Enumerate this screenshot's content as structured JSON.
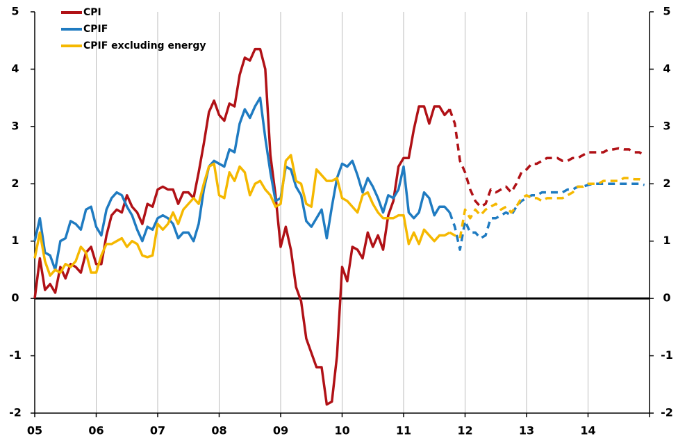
{
  "chart_data": {
    "type": "line",
    "categories": [
      "05",
      null,
      null,
      null,
      null,
      null,
      null,
      null,
      null,
      null,
      null,
      null,
      "06",
      null,
      null,
      null,
      null,
      null,
      null,
      null,
      null,
      null,
      null,
      null,
      "07",
      null,
      null,
      null,
      null,
      null,
      null,
      null,
      null,
      null,
      null,
      null,
      "08",
      null,
      null,
      null,
      null,
      null,
      null,
      null,
      null,
      null,
      null,
      null,
      "09",
      null,
      null,
      null,
      null,
      null,
      null,
      null,
      null,
      null,
      null,
      null,
      "10",
      null,
      null,
      null,
      null,
      null,
      null,
      null,
      null,
      null,
      null,
      null,
      "11",
      null,
      null,
      null,
      null,
      null,
      null,
      null,
      null,
      null,
      null,
      null,
      "12",
      null,
      null,
      null,
      null,
      null,
      null,
      null,
      null,
      null,
      null,
      null,
      "13",
      null,
      null,
      null,
      null,
      null,
      null,
      null,
      null,
      null,
      null,
      null,
      "14",
      null,
      null,
      null,
      null,
      null,
      null,
      null,
      null,
      null,
      null,
      null
    ],
    "ylim": [
      -2,
      5
    ],
    "yticks": [
      -2,
      -1,
      0,
      1,
      2,
      3,
      4,
      5
    ],
    "grid": "x",
    "legend": "upper-left",
    "series": [
      {
        "name": "CPI",
        "color": "#b01116",
        "values": [
          0,
          0.7,
          0.15,
          0.25,
          0.1,
          0.55,
          0.35,
          0.6,
          0.55,
          0.45,
          0.8,
          0.9,
          0.6,
          0.6,
          1.1,
          1.45,
          1.55,
          1.5,
          1.8,
          1.6,
          1.5,
          1.3,
          1.65,
          1.6,
          1.9,
          1.95,
          1.9,
          1.9,
          1.65,
          1.85,
          1.85,
          1.75,
          2.2,
          2.7,
          3.25,
          3.45,
          3.2,
          3.1,
          3.4,
          3.35,
          3.9,
          4.2,
          4.15,
          4.35,
          4.35,
          4.0,
          2.5,
          1.8,
          0.9,
          1.25,
          0.85,
          0.2,
          -0.05,
          -0.7,
          -0.95,
          -1.2,
          -1.2,
          -1.85,
          -1.8,
          -1.0,
          0.55,
          0.3,
          0.9,
          0.85,
          0.7,
          1.15,
          0.9,
          1.1,
          0.85,
          1.45,
          1.7,
          2.3,
          2.45,
          2.45,
          2.95,
          3.35,
          3.35,
          3.05,
          3.35,
          3.35,
          3.2,
          3.3,
          null,
          null,
          null,
          null,
          null,
          null,
          null,
          null,
          null,
          null,
          null,
          null,
          null,
          null,
          null,
          null,
          null,
          null,
          null,
          null,
          null,
          null,
          null,
          null,
          null,
          null,
          null,
          null,
          null,
          null,
          null,
          null,
          null,
          null,
          null,
          null,
          null,
          null
        ],
        "forecast": [
          null,
          null,
          null,
          null,
          null,
          null,
          null,
          null,
          null,
          null,
          null,
          null,
          null,
          null,
          null,
          null,
          null,
          null,
          null,
          null,
          null,
          null,
          null,
          null,
          null,
          null,
          null,
          null,
          null,
          null,
          null,
          null,
          null,
          null,
          null,
          null,
          null,
          null,
          null,
          null,
          null,
          null,
          null,
          null,
          null,
          null,
          null,
          null,
          null,
          null,
          null,
          null,
          null,
          null,
          null,
          null,
          null,
          null,
          null,
          null,
          null,
          null,
          null,
          null,
          null,
          null,
          null,
          null,
          null,
          null,
          null,
          null,
          null,
          null,
          null,
          null,
          null,
          null,
          null,
          null,
          null,
          null,
          3.05,
          2.4,
          2.2,
          1.9,
          1.7,
          1.6,
          1.65,
          1.9,
          1.85,
          1.9,
          1.95,
          1.85,
          2.0,
          2.2,
          2.25,
          2.35,
          2.35,
          2.4,
          2.45,
          2.45,
          2.45,
          2.4,
          2.4,
          2.45,
          2.45,
          2.5,
          2.55,
          2.55,
          2.55,
          2.55,
          2.6,
          2.6,
          2.62,
          2.6,
          2.6,
          2.55,
          2.55,
          2.5
        ]
      },
      {
        "name": "CPIF",
        "color": "#1f7bc1",
        "values": [
          1.0,
          1.4,
          0.8,
          0.75,
          0.5,
          1.0,
          1.05,
          1.35,
          1.3,
          1.2,
          1.55,
          1.6,
          1.25,
          1.1,
          1.55,
          1.75,
          1.85,
          1.8,
          1.6,
          1.45,
          1.2,
          1.0,
          1.25,
          1.2,
          1.4,
          1.45,
          1.4,
          1.3,
          1.05,
          1.15,
          1.15,
          1.0,
          1.3,
          1.9,
          2.3,
          2.4,
          2.35,
          2.3,
          2.6,
          2.55,
          3.05,
          3.3,
          3.15,
          3.35,
          3.5,
          2.8,
          2.2,
          1.7,
          1.75,
          2.3,
          2.25,
          1.95,
          1.8,
          1.35,
          1.25,
          1.4,
          1.55,
          1.05,
          1.6,
          2.1,
          2.35,
          2.3,
          2.4,
          2.15,
          1.85,
          2.1,
          1.95,
          1.75,
          1.5,
          1.8,
          1.75,
          1.9,
          2.3,
          1.5,
          1.4,
          1.5,
          1.85,
          1.75,
          1.45,
          1.6,
          1.6,
          1.5,
          null,
          null,
          null,
          null,
          null,
          null,
          null,
          null,
          null,
          null,
          null,
          null,
          null,
          null,
          null,
          null,
          null,
          null,
          null,
          null,
          null,
          null,
          null,
          null,
          null,
          null,
          null,
          null,
          null,
          null,
          null,
          null,
          null,
          null,
          null,
          null,
          null,
          null
        ],
        "forecast": [
          null,
          null,
          null,
          null,
          null,
          null,
          null,
          null,
          null,
          null,
          null,
          null,
          null,
          null,
          null,
          null,
          null,
          null,
          null,
          null,
          null,
          null,
          null,
          null,
          null,
          null,
          null,
          null,
          null,
          null,
          null,
          null,
          null,
          null,
          null,
          null,
          null,
          null,
          null,
          null,
          null,
          null,
          null,
          null,
          null,
          null,
          null,
          null,
          null,
          null,
          null,
          null,
          null,
          null,
          null,
          null,
          null,
          null,
          null,
          null,
          null,
          null,
          null,
          null,
          null,
          null,
          null,
          null,
          null,
          null,
          null,
          null,
          null,
          null,
          null,
          null,
          null,
          null,
          null,
          null,
          null,
          null,
          1.25,
          0.85,
          1.35,
          1.15,
          1.15,
          1.05,
          1.1,
          1.4,
          1.4,
          1.45,
          1.5,
          1.45,
          1.6,
          1.7,
          1.75,
          1.8,
          1.8,
          1.85,
          1.85,
          1.85,
          1.85,
          1.85,
          1.9,
          1.9,
          1.95,
          1.95,
          1.98,
          2.0,
          2.0,
          2.0,
          2.0,
          2.0,
          2.0,
          2.0,
          2.0,
          2.0,
          2.0,
          1.98
        ]
      },
      {
        "name": "CPIF excluding energy",
        "color": "#f5b800",
        "values": [
          0.7,
          1.15,
          0.65,
          0.4,
          0.5,
          0.45,
          0.6,
          0.55,
          0.65,
          0.9,
          0.8,
          0.45,
          0.45,
          0.75,
          0.95,
          0.95,
          1.0,
          1.05,
          0.9,
          1.0,
          0.95,
          0.75,
          0.72,
          0.75,
          1.3,
          1.2,
          1.3,
          1.5,
          1.3,
          1.55,
          1.65,
          1.75,
          1.65,
          2.0,
          2.3,
          2.35,
          1.8,
          1.75,
          2.2,
          2.05,
          2.3,
          2.2,
          1.8,
          2.0,
          2.05,
          1.9,
          1.8,
          1.6,
          1.65,
          2.4,
          2.5,
          2.05,
          2.0,
          1.65,
          1.6,
          2.25,
          2.15,
          2.05,
          2.05,
          2.1,
          1.75,
          1.7,
          1.6,
          1.5,
          1.8,
          1.85,
          1.65,
          1.5,
          1.4,
          1.4,
          1.4,
          1.45,
          1.45,
          0.95,
          1.15,
          0.95,
          1.2,
          1.1,
          1.0,
          1.1,
          1.1,
          1.15,
          null,
          null,
          null,
          null,
          null,
          null,
          null,
          null,
          null,
          null,
          null,
          null,
          null,
          null,
          null,
          null,
          null,
          null,
          null,
          null,
          null,
          null,
          null,
          null,
          null,
          null,
          null,
          null,
          null,
          null,
          null,
          null,
          null,
          null,
          null,
          null,
          null,
          null
        ],
        "forecast": [
          null,
          null,
          null,
          null,
          null,
          null,
          null,
          null,
          null,
          null,
          null,
          null,
          null,
          null,
          null,
          null,
          null,
          null,
          null,
          null,
          null,
          null,
          null,
          null,
          null,
          null,
          null,
          null,
          null,
          null,
          null,
          null,
          null,
          null,
          null,
          null,
          null,
          null,
          null,
          null,
          null,
          null,
          null,
          null,
          null,
          null,
          null,
          null,
          null,
          null,
          null,
          null,
          null,
          null,
          null,
          null,
          null,
          null,
          null,
          null,
          null,
          null,
          null,
          null,
          null,
          null,
          null,
          null,
          null,
          null,
          null,
          null,
          null,
          null,
          null,
          null,
          null,
          null,
          null,
          null,
          null,
          null,
          1.1,
          1.05,
          1.55,
          1.4,
          1.55,
          1.45,
          1.55,
          1.6,
          1.65,
          1.55,
          1.6,
          1.5,
          1.6,
          1.75,
          1.8,
          1.75,
          1.75,
          1.7,
          1.75,
          1.75,
          1.75,
          1.75,
          1.8,
          1.85,
          1.95,
          1.95,
          2.0,
          2.0,
          2.0,
          2.05,
          2.05,
          2.05,
          2.05,
          2.1,
          2.1,
          2.08,
          2.08,
          2.05
        ]
      }
    ]
  }
}
